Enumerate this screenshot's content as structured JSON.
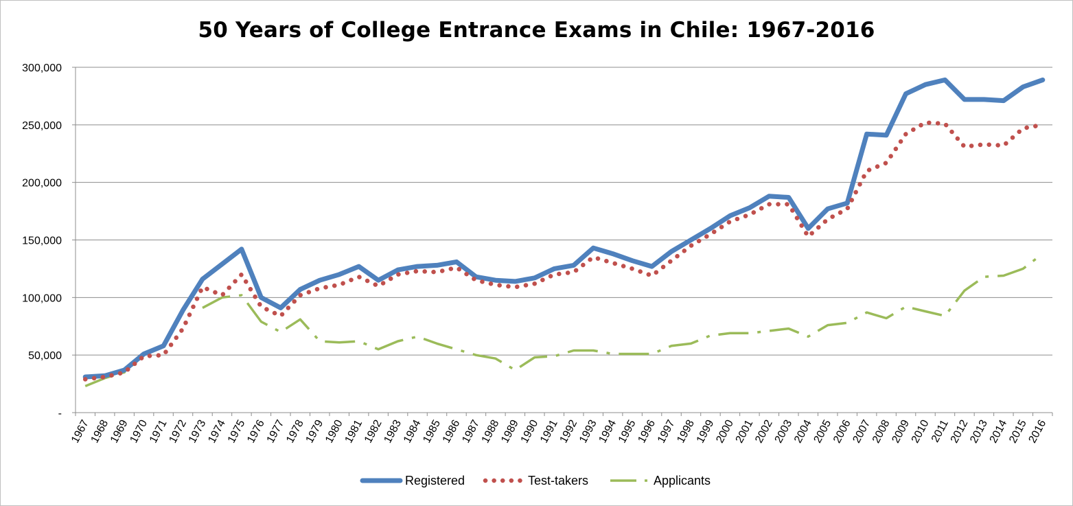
{
  "chart_data": {
    "type": "line",
    "title": "50 Years of College Entrance Exams in Chile: 1967-2016",
    "xlabel": "",
    "ylabel": "",
    "ylim": [
      0,
      300000
    ],
    "yticks": [
      0,
      50000,
      100000,
      150000,
      200000,
      250000,
      300000
    ],
    "ytick_labels": [
      "-",
      "50,000",
      "100,000",
      "150,000",
      "200,000",
      "250,000",
      "300,000"
    ],
    "grid": true,
    "legend_position": "bottom",
    "x": [
      "1967",
      "1968",
      "1969",
      "1970",
      "1971",
      "1972",
      "1973",
      "1974",
      "1975",
      "1976",
      "1977",
      "1978",
      "1979",
      "1980",
      "1981",
      "1982",
      "1983",
      "1984",
      "1985",
      "1986",
      "1987",
      "1988",
      "1989",
      "1990",
      "1991",
      "1992",
      "1993",
      "1994",
      "1995",
      "1996",
      "1997",
      "1998",
      "1999",
      "2000",
      "2001",
      "2002",
      "2003",
      "2004",
      "2005",
      "2006",
      "2007",
      "2008",
      "2009",
      "2010",
      "2011",
      "2012",
      "2013",
      "2014",
      "2015",
      "2016"
    ],
    "series": [
      {
        "name": "Registered",
        "color": "#4f81bd",
        "style": "solid",
        "values": [
          31000,
          32000,
          37000,
          51000,
          58000,
          89000,
          116000,
          129000,
          142000,
          100000,
          91000,
          107000,
          115000,
          120000,
          127000,
          115000,
          124000,
          127000,
          128000,
          131000,
          118000,
          115000,
          114000,
          117000,
          125000,
          128000,
          143000,
          138000,
          132000,
          127000,
          140000,
          150000,
          160000,
          171000,
          178000,
          188000,
          187000,
          160000,
          177000,
          182000,
          242000,
          241000,
          277000,
          285000,
          289000,
          272000,
          272000,
          271000,
          283000,
          289000
        ]
      },
      {
        "name": "Test-takers",
        "color": "#c0504d",
        "style": "dotted",
        "values": [
          29000,
          31000,
          35000,
          49000,
          50000,
          73000,
          109000,
          102000,
          120000,
          92000,
          84000,
          102000,
          108000,
          111000,
          118000,
          110000,
          120000,
          123000,
          122000,
          126000,
          115000,
          111000,
          109000,
          112000,
          120000,
          122000,
          135000,
          130000,
          125000,
          119000,
          132000,
          145000,
          155000,
          166000,
          172000,
          181000,
          181000,
          153000,
          168000,
          177000,
          210000,
          217000,
          242000,
          252000,
          251000,
          231000,
          233000,
          232000,
          247000,
          250000
        ]
      },
      {
        "name": "Applicants",
        "color": "#9bbb59",
        "style": "dashed",
        "values": [
          23000,
          30000,
          35000,
          50000,
          null,
          null,
          91000,
          100000,
          102000,
          79000,
          70000,
          81000,
          62000,
          61000,
          62000,
          55000,
          62000,
          66000,
          60000,
          55000,
          50000,
          47000,
          37000,
          48000,
          49000,
          54000,
          54000,
          51000,
          51000,
          51000,
          58000,
          60000,
          67000,
          69000,
          69000,
          71000,
          73000,
          66000,
          76000,
          78000,
          87000,
          82000,
          92000,
          88000,
          84000,
          106000,
          118000,
          119000,
          125000,
          138000
        ]
      }
    ]
  }
}
